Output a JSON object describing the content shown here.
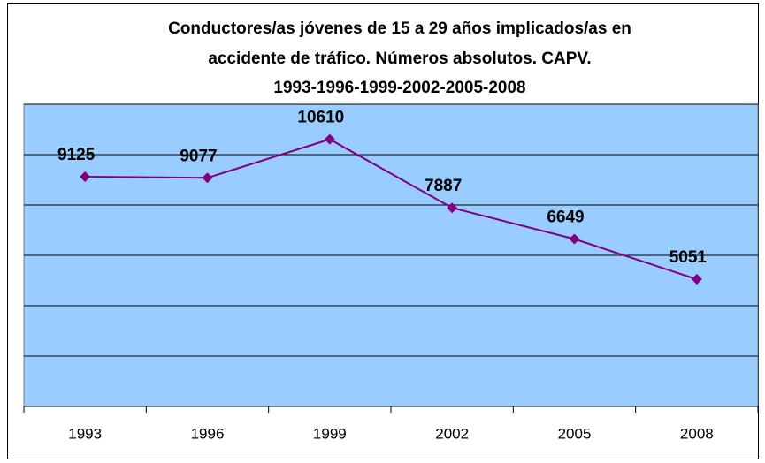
{
  "chart_data": {
    "type": "line",
    "title": [
      "Conductores/as jóvenes de 15 a 29 años implicados/as en",
      "accidente de tráfico. Números absolutos. CAPV.",
      "1993-1996-1999-2002-2005-2008"
    ],
    "categories": [
      "1993",
      "1996",
      "1999",
      "2002",
      "2005",
      "2008"
    ],
    "series": [
      {
        "name": "Conductores/as",
        "color": "#800080",
        "values": [
          9125,
          9077,
          10610,
          7887,
          6649,
          5051
        ]
      }
    ],
    "ylim": [
      0,
      12000
    ],
    "yticks": [
      0,
      2000,
      4000,
      6000,
      8000,
      10000,
      12000
    ],
    "grid": true,
    "plot_color": "#99ccff"
  }
}
